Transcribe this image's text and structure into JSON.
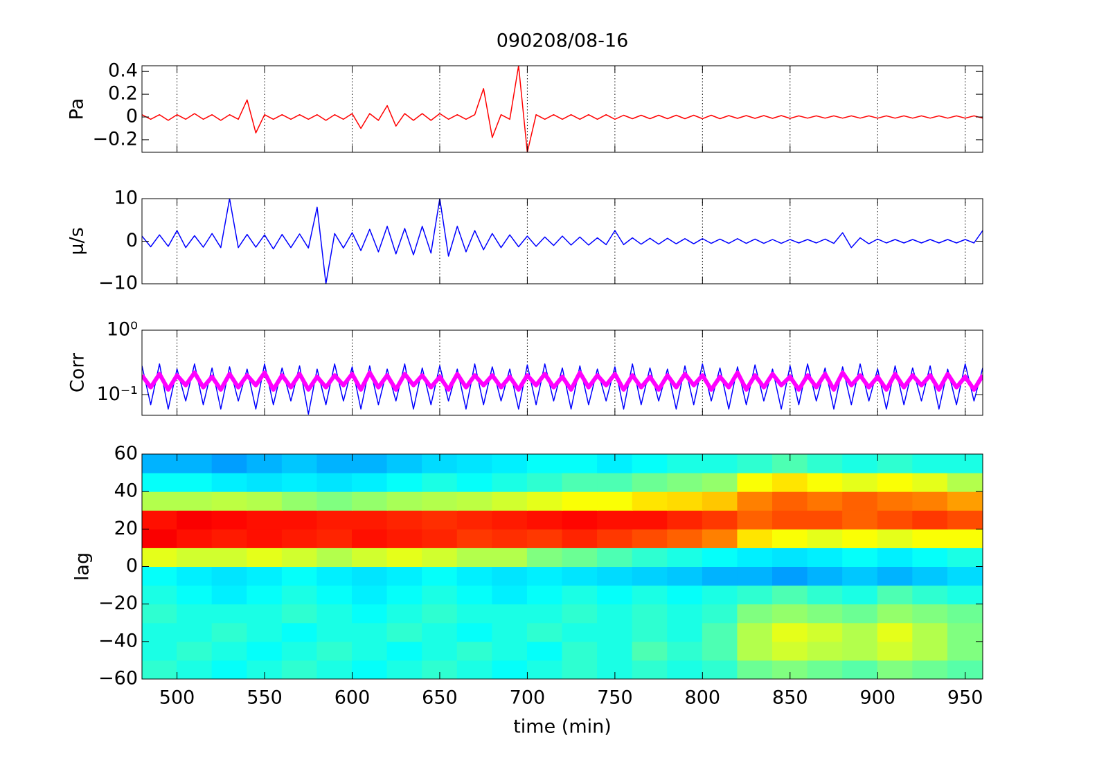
{
  "chart_data": [
    {
      "type": "line",
      "title": "090208/08-16",
      "ylabel": "Pa",
      "xlim": [
        480,
        960
      ],
      "xticks": [
        500,
        550,
        600,
        650,
        700,
        750,
        800,
        850,
        900,
        950
      ],
      "xgrid": true,
      "ylim": [
        -0.31,
        0.45
      ],
      "yticks": [
        {
          "value": -0.2,
          "label": "−0.2"
        },
        0,
        0.2,
        0.4
      ],
      "x": [
        480,
        485,
        490,
        495,
        500,
        505,
        510,
        515,
        520,
        525,
        530,
        535,
        540,
        545,
        550,
        555,
        560,
        565,
        570,
        575,
        580,
        585,
        590,
        595,
        600,
        605,
        610,
        615,
        620,
        625,
        630,
        635,
        640,
        645,
        650,
        655,
        660,
        665,
        670,
        675,
        680,
        685,
        690,
        695,
        700,
        705,
        710,
        715,
        720,
        725,
        730,
        735,
        740,
        745,
        750,
        755,
        760,
        765,
        770,
        775,
        780,
        785,
        790,
        795,
        800,
        805,
        810,
        815,
        820,
        825,
        830,
        835,
        840,
        845,
        850,
        855,
        860,
        865,
        870,
        875,
        880,
        885,
        890,
        895,
        900,
        905,
        910,
        915,
        920,
        925,
        930,
        935,
        940,
        945,
        950,
        955,
        960
      ],
      "series": [
        {
          "color": "#ff0000",
          "values": [
            0.02,
            -0.02,
            0.02,
            -0.03,
            0.02,
            -0.02,
            0.03,
            -0.02,
            0.02,
            -0.03,
            0.02,
            -0.02,
            0.15,
            -0.14,
            0.02,
            -0.02,
            0.02,
            -0.02,
            0.02,
            -0.02,
            0.02,
            -0.03,
            0.02,
            -0.02,
            0.03,
            -0.1,
            0.03,
            -0.03,
            0.1,
            -0.08,
            0.03,
            -0.03,
            0.03,
            -0.03,
            0.03,
            -0.02,
            0.02,
            -0.02,
            0.02,
            0.25,
            -0.18,
            0.02,
            -0.02,
            0.45,
            -0.31,
            0.02,
            -0.02,
            0.02,
            -0.02,
            0.02,
            -0.02,
            0.02,
            -0.02,
            0.02,
            -0.02,
            0.015,
            -0.015,
            0.015,
            -0.015,
            0.015,
            -0.015,
            0.015,
            -0.015,
            0.015,
            -0.015,
            0.015,
            -0.015,
            0.012,
            -0.012,
            0.012,
            -0.012,
            0.012,
            -0.012,
            0.012,
            -0.012,
            0.01,
            -0.01,
            0.01,
            -0.01,
            0.01,
            -0.01,
            0.01,
            -0.01,
            0.01,
            -0.01,
            0.01,
            -0.01,
            0.01,
            -0.01,
            0.01,
            -0.01,
            0.01,
            -0.01,
            0.01,
            -0.01,
            0.01,
            -0.01
          ]
        }
      ]
    },
    {
      "type": "line",
      "ylabel": "μ/s",
      "xlim": [
        480,
        960
      ],
      "xticks": [
        500,
        550,
        600,
        650,
        700,
        750,
        800,
        850,
        900,
        950
      ],
      "xgrid": true,
      "ylim": [
        -10,
        10
      ],
      "yticks": [
        {
          "value": -10,
          "label": "−10"
        },
        0,
        10
      ],
      "x": [
        480,
        485,
        490,
        495,
        500,
        505,
        510,
        515,
        520,
        525,
        530,
        535,
        540,
        545,
        550,
        555,
        560,
        565,
        570,
        575,
        580,
        585,
        590,
        595,
        600,
        605,
        610,
        615,
        620,
        625,
        630,
        635,
        640,
        645,
        650,
        655,
        660,
        665,
        670,
        675,
        680,
        685,
        690,
        695,
        700,
        705,
        710,
        715,
        720,
        725,
        730,
        735,
        740,
        745,
        750,
        755,
        760,
        765,
        770,
        775,
        780,
        785,
        790,
        795,
        800,
        805,
        810,
        815,
        820,
        825,
        830,
        835,
        840,
        845,
        850,
        855,
        860,
        865,
        870,
        875,
        880,
        885,
        890,
        895,
        900,
        905,
        910,
        915,
        920,
        925,
        930,
        935,
        940,
        945,
        950,
        955,
        960
      ],
      "series": [
        {
          "color": "#0000ff",
          "values": [
            1.2,
            -1.3,
            1.5,
            -1.2,
            2.5,
            -1.5,
            1.3,
            -1.4,
            1.8,
            -1.5,
            10,
            -1.5,
            1.6,
            -1.4,
            1.5,
            -1.8,
            1.6,
            -1.5,
            1.7,
            -1.6,
            8,
            -10,
            1.8,
            -1.6,
            2,
            -2.2,
            2.8,
            -2.5,
            3.5,
            -3,
            3,
            -3.2,
            3.5,
            -2.8,
            10,
            -3.5,
            3.5,
            -2.5,
            2.5,
            -2,
            1.8,
            -1.5,
            1.5,
            -1.3,
            1.2,
            -1.2,
            1,
            -1,
            1.2,
            -0.9,
            1,
            -0.9,
            0.8,
            -0.8,
            2.5,
            -0.8,
            0.8,
            -0.7,
            0.7,
            -0.7,
            0.7,
            -0.6,
            0.6,
            -0.6,
            0.6,
            -0.5,
            0.5,
            -0.5,
            0.6,
            -0.5,
            0.5,
            -0.5,
            0.4,
            -0.5,
            0.4,
            -0.4,
            0.4,
            -0.4,
            0.5,
            -0.5,
            2,
            -1.5,
            0.8,
            -0.6,
            0.5,
            -0.4,
            0.4,
            -0.4,
            0.4,
            -0.4,
            0.4,
            -0.4,
            0.4,
            -0.4,
            0.4,
            -0.4,
            2.5
          ]
        }
      ]
    },
    {
      "type": "line",
      "ylabel": "Corr",
      "yscale": "log",
      "xlim": [
        480,
        960
      ],
      "xticks": [
        500,
        550,
        600,
        650,
        700,
        750,
        800,
        850,
        900,
        950
      ],
      "xgrid": true,
      "ylim": [
        0.048,
        1
      ],
      "yticks": [
        {
          "value": 0.1,
          "label": "10⁻¹"
        },
        {
          "value": 1,
          "label": "10⁰"
        }
      ],
      "x": [
        480,
        485,
        490,
        495,
        500,
        505,
        510,
        515,
        520,
        525,
        530,
        535,
        540,
        545,
        550,
        555,
        560,
        565,
        570,
        575,
        580,
        585,
        590,
        595,
        600,
        605,
        610,
        615,
        620,
        625,
        630,
        635,
        640,
        645,
        650,
        655,
        660,
        665,
        670,
        675,
        680,
        685,
        690,
        695,
        700,
        705,
        710,
        715,
        720,
        725,
        730,
        735,
        740,
        745,
        750,
        755,
        760,
        765,
        770,
        775,
        780,
        785,
        790,
        795,
        800,
        805,
        810,
        815,
        820,
        825,
        830,
        835,
        840,
        845,
        850,
        855,
        860,
        865,
        870,
        875,
        880,
        885,
        890,
        895,
        900,
        905,
        910,
        915,
        920,
        925,
        930,
        935,
        940,
        945,
        950,
        955,
        960
      ],
      "series": [
        {
          "color": "#0000ff",
          "width": 1.5,
          "values": [
            0.28,
            0.07,
            0.3,
            0.06,
            0.25,
            0.08,
            0.3,
            0.07,
            0.26,
            0.06,
            0.27,
            0.08,
            0.25,
            0.06,
            0.3,
            0.07,
            0.26,
            0.08,
            0.28,
            0.05,
            0.25,
            0.07,
            0.3,
            0.08,
            0.27,
            0.06,
            0.28,
            0.07,
            0.25,
            0.08,
            0.3,
            0.06,
            0.26,
            0.07,
            0.28,
            0.08,
            0.25,
            0.06,
            0.3,
            0.07,
            0.27,
            0.08,
            0.25,
            0.06,
            0.29,
            0.07,
            0.3,
            0.08,
            0.26,
            0.06,
            0.28,
            0.07,
            0.25,
            0.08,
            0.27,
            0.06,
            0.3,
            0.07,
            0.26,
            0.08,
            0.25,
            0.06,
            0.28,
            0.07,
            0.3,
            0.08,
            0.26,
            0.06,
            0.27,
            0.07,
            0.29,
            0.08,
            0.25,
            0.06,
            0.28,
            0.07,
            0.3,
            0.08,
            0.26,
            0.06,
            0.27,
            0.07,
            0.3,
            0.08,
            0.25,
            0.06,
            0.28,
            0.07,
            0.26,
            0.08,
            0.28,
            0.06,
            0.25,
            0.07,
            0.3,
            0.08,
            0.26
          ]
        },
        {
          "color": "#ff00ff",
          "width": 6,
          "values": [
            0.2,
            0.13,
            0.21,
            0.12,
            0.2,
            0.14,
            0.22,
            0.13,
            0.19,
            0.12,
            0.21,
            0.13,
            0.2,
            0.14,
            0.22,
            0.12,
            0.2,
            0.13,
            0.21,
            0.12,
            0.19,
            0.13,
            0.2,
            0.14,
            0.21,
            0.12,
            0.22,
            0.13,
            0.2,
            0.12,
            0.21,
            0.14,
            0.2,
            0.13,
            0.19,
            0.12,
            0.21,
            0.13,
            0.2,
            0.14,
            0.2,
            0.13,
            0.19,
            0.12,
            0.2,
            0.14,
            0.21,
            0.13,
            0.19,
            0.12,
            0.22,
            0.13,
            0.2,
            0.14,
            0.21,
            0.12,
            0.2,
            0.13,
            0.19,
            0.12,
            0.2,
            0.13,
            0.21,
            0.14,
            0.2,
            0.12,
            0.19,
            0.13,
            0.22,
            0.12,
            0.2,
            0.13,
            0.21,
            0.14,
            0.19,
            0.12,
            0.2,
            0.13,
            0.21,
            0.12,
            0.22,
            0.14,
            0.2,
            0.13,
            0.19,
            0.12,
            0.21,
            0.13,
            0.2,
            0.14,
            0.2,
            0.12,
            0.21,
            0.13,
            0.19,
            0.12,
            0.2
          ]
        }
      ]
    },
    {
      "type": "heatmap",
      "ylabel": "lag",
      "xlabel": "time (min)",
      "xlim": [
        480,
        960
      ],
      "xticks": [
        500,
        550,
        600,
        650,
        700,
        750,
        800,
        850,
        900,
        950
      ],
      "ylim": [
        -60,
        60
      ],
      "yticks": [
        {
          "value": -60,
          "label": "−60"
        },
        {
          "value": -40,
          "label": "−40"
        },
        {
          "value": -20,
          "label": "−20"
        },
        0,
        20,
        40,
        60
      ],
      "clim": [
        0,
        1
      ],
      "x": [
        490,
        510,
        530,
        550,
        570,
        590,
        610,
        630,
        650,
        670,
        690,
        710,
        730,
        750,
        770,
        790,
        810,
        830,
        850,
        870,
        890,
        910,
        930,
        950
      ],
      "y": [
        -55,
        -45,
        -35,
        -25,
        -15,
        -5,
        5,
        15,
        25,
        35,
        45,
        55
      ],
      "values": [
        [
          0.42,
          0.4,
          0.38,
          0.4,
          0.42,
          0.4,
          0.38,
          0.4,
          0.42,
          0.4,
          0.38,
          0.4,
          0.42,
          0.4,
          0.42,
          0.4,
          0.42,
          0.48,
          0.5,
          0.48,
          0.46,
          0.5,
          0.48,
          0.46
        ],
        [
          0.4,
          0.42,
          0.4,
          0.38,
          0.4,
          0.42,
          0.4,
          0.38,
          0.4,
          0.42,
          0.4,
          0.38,
          0.42,
          0.4,
          0.45,
          0.42,
          0.45,
          0.55,
          0.58,
          0.56,
          0.55,
          0.58,
          0.55,
          0.5
        ],
        [
          0.4,
          0.4,
          0.42,
          0.4,
          0.38,
          0.4,
          0.4,
          0.42,
          0.4,
          0.38,
          0.4,
          0.42,
          0.4,
          0.4,
          0.42,
          0.4,
          0.45,
          0.55,
          0.6,
          0.58,
          0.55,
          0.6,
          0.55,
          0.5
        ],
        [
          0.42,
          0.4,
          0.4,
          0.4,
          0.42,
          0.4,
          0.38,
          0.4,
          0.42,
          0.4,
          0.4,
          0.4,
          0.42,
          0.4,
          0.42,
          0.4,
          0.42,
          0.5,
          0.52,
          0.5,
          0.48,
          0.52,
          0.5,
          0.48
        ],
        [
          0.4,
          0.38,
          0.36,
          0.38,
          0.4,
          0.38,
          0.36,
          0.38,
          0.4,
          0.38,
          0.36,
          0.38,
          0.4,
          0.38,
          0.4,
          0.38,
          0.4,
          0.42,
          0.45,
          0.42,
          0.4,
          0.45,
          0.42,
          0.4
        ],
        [
          0.38,
          0.36,
          0.35,
          0.36,
          0.38,
          0.36,
          0.35,
          0.36,
          0.38,
          0.36,
          0.35,
          0.36,
          0.35,
          0.34,
          0.33,
          0.32,
          0.3,
          0.3,
          0.28,
          0.3,
          0.32,
          0.3,
          0.32,
          0.34
        ],
        [
          0.6,
          0.58,
          0.58,
          0.6,
          0.58,
          0.55,
          0.58,
          0.6,
          0.58,
          0.55,
          0.55,
          0.5,
          0.48,
          0.45,
          0.42,
          0.4,
          0.38,
          0.36,
          0.35,
          0.36,
          0.38,
          0.36,
          0.38,
          0.4
        ],
        [
          0.88,
          0.86,
          0.85,
          0.86,
          0.85,
          0.84,
          0.86,
          0.85,
          0.84,
          0.82,
          0.83,
          0.82,
          0.84,
          0.82,
          0.8,
          0.78,
          0.75,
          0.65,
          0.62,
          0.6,
          0.62,
          0.6,
          0.62,
          0.62
        ],
        [
          0.86,
          0.88,
          0.87,
          0.86,
          0.86,
          0.85,
          0.85,
          0.84,
          0.83,
          0.84,
          0.85,
          0.86,
          0.87,
          0.86,
          0.86,
          0.84,
          0.82,
          0.78,
          0.8,
          0.8,
          0.78,
          0.8,
          0.82,
          0.8
        ],
        [
          0.55,
          0.55,
          0.56,
          0.55,
          0.52,
          0.5,
          0.52,
          0.54,
          0.55,
          0.56,
          0.58,
          0.6,
          0.62,
          0.62,
          0.65,
          0.66,
          0.68,
          0.75,
          0.78,
          0.76,
          0.78,
          0.76,
          0.75,
          0.72
        ],
        [
          0.38,
          0.38,
          0.36,
          0.35,
          0.36,
          0.35,
          0.36,
          0.38,
          0.4,
          0.38,
          0.4,
          0.42,
          0.45,
          0.45,
          0.48,
          0.5,
          0.52,
          0.62,
          0.65,
          0.62,
          0.6,
          0.62,
          0.6,
          0.55
        ],
        [
          0.3,
          0.3,
          0.28,
          0.3,
          0.32,
          0.3,
          0.3,
          0.32,
          0.34,
          0.35,
          0.36,
          0.38,
          0.38,
          0.36,
          0.38,
          0.4,
          0.4,
          0.42,
          0.45,
          0.42,
          0.4,
          0.42,
          0.4,
          0.4
        ]
      ]
    }
  ]
}
